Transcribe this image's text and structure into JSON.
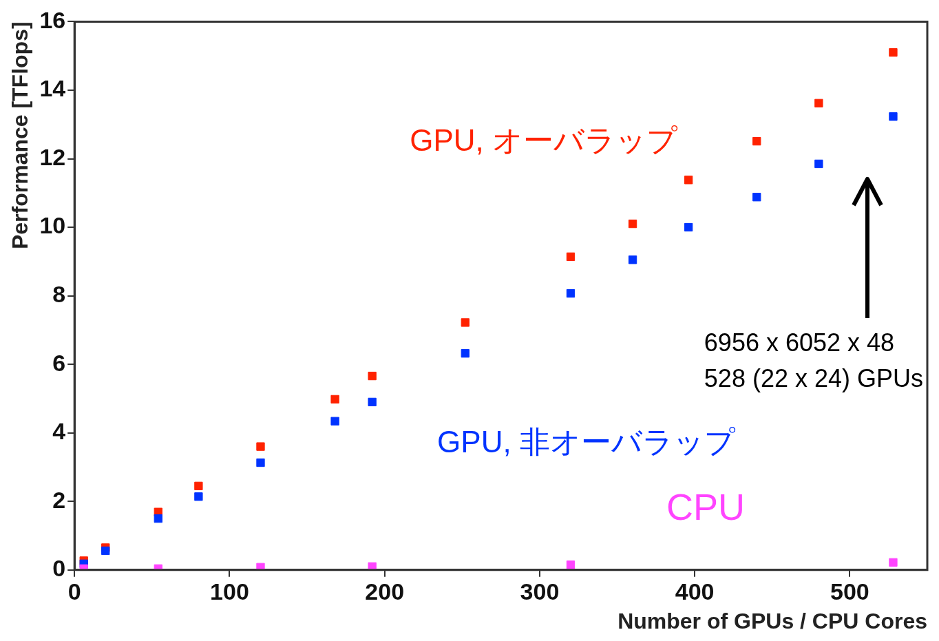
{
  "chart_data": {
    "type": "scatter",
    "xlabel": "Number of GPUs / CPU Cores",
    "ylabel": "Performance [TFlops]",
    "xlim": [
      0,
      550
    ],
    "xticks": [
      0,
      100,
      200,
      300,
      400,
      500
    ],
    "ylim": [
      0,
      16
    ],
    "yticks": [
      0,
      2,
      4,
      6,
      8,
      10,
      12,
      14,
      16
    ],
    "grid": false,
    "legend": false,
    "marker": "square",
    "series": [
      {
        "name": "GPU, オーバラップ",
        "color": "#ff2200",
        "x": [
          6,
          20,
          54,
          80,
          120,
          168,
          192,
          252,
          320,
          360,
          396,
          440,
          480,
          528
        ],
        "values": [
          0.27,
          0.65,
          1.69,
          2.45,
          3.6,
          4.98,
          5.66,
          7.22,
          9.14,
          10.1,
          11.38,
          12.51,
          13.62,
          15.1
        ]
      },
      {
        "name": "GPU, 非オーバラップ",
        "color": "#0033ff",
        "x": [
          6,
          20,
          54,
          80,
          120,
          168,
          192,
          252,
          320,
          360,
          396,
          440,
          480,
          528
        ],
        "values": [
          0.18,
          0.56,
          1.5,
          2.14,
          3.13,
          4.34,
          4.9,
          6.32,
          8.07,
          9.05,
          10.0,
          10.88,
          11.85,
          13.23
        ]
      },
      {
        "name": "CPU",
        "color": "#ff44ff",
        "x": [
          6,
          54,
          120,
          192,
          320,
          528
        ],
        "values": [
          0.04,
          0.04,
          0.08,
          0.1,
          0.15,
          0.22
        ]
      }
    ],
    "annotations": [
      "6956 x 6052 x 48\n528 (22 x 24) GPUs"
    ]
  }
}
